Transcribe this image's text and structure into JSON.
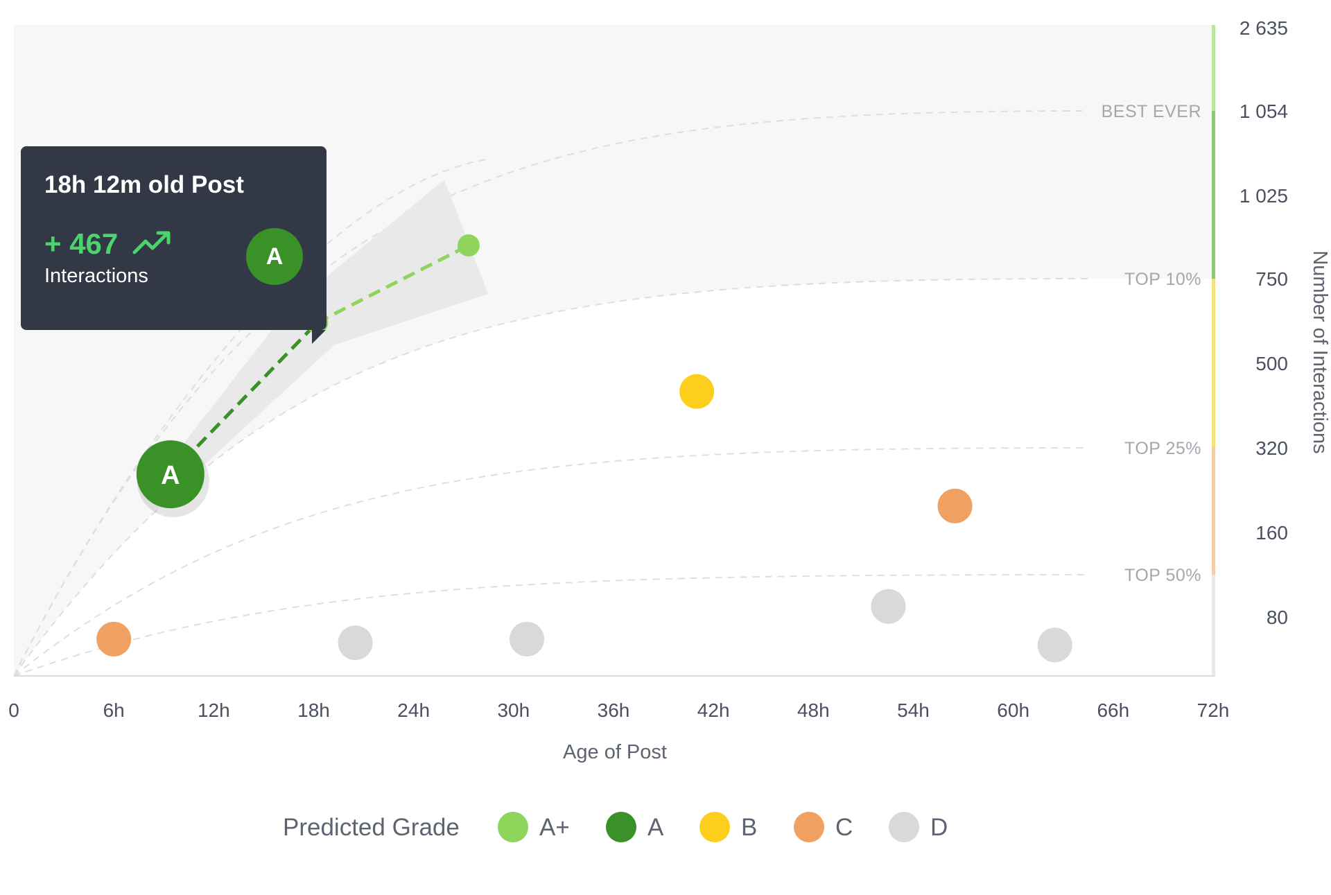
{
  "chart_data": {
    "type": "scatter",
    "xlabel": "Age of Post",
    "ylabel": "Number of Interactions",
    "x_ticks": [
      "0",
      "6h",
      "12h",
      "18h",
      "24h",
      "30h",
      "36h",
      "42h",
      "48h",
      "54h",
      "60h",
      "66h",
      "72h"
    ],
    "xlim": [
      0,
      72
    ],
    "y_ticks": [
      "80",
      "160",
      "320",
      "500",
      "750",
      "1 025",
      "1 054",
      "2 635"
    ],
    "bands": [
      {
        "label": "BEST EVER",
        "value": 1054,
        "color": "#b9e4a4"
      },
      {
        "label": "TOP 10%",
        "value": 750,
        "color": "#8dc87c"
      },
      {
        "label": "TOP 25%",
        "value": 320,
        "color": "#f4e27a"
      },
      {
        "label": "TOP 50%",
        "value": 120,
        "color": "#f3cba9"
      }
    ],
    "legend": {
      "title": "Predicted Grade",
      "items": [
        {
          "label": "A+",
          "color": "#8fd55c"
        },
        {
          "label": "A",
          "color": "#3a9127"
        },
        {
          "label": "B",
          "color": "#fdcf1c"
        },
        {
          "label": "C",
          "color": "#f0a060"
        },
        {
          "label": "D",
          "color": "#d9d9d9"
        }
      ]
    },
    "points": [
      {
        "x": 6,
        "y": 50,
        "grade": "C"
      },
      {
        "x": 20.5,
        "y": 45,
        "grade": "D"
      },
      {
        "x": 30.8,
        "y": 50,
        "grade": "D"
      },
      {
        "x": 41,
        "y": 440,
        "grade": "B"
      },
      {
        "x": 52.5,
        "y": 90,
        "grade": "D"
      },
      {
        "x": 56.5,
        "y": 210,
        "grade": "C"
      },
      {
        "x": 62.5,
        "y": 42,
        "grade": "D"
      }
    ],
    "highlight": {
      "x": 9.4,
      "y": 270,
      "grade": "A",
      "projection": [
        {
          "x": 18.2,
          "y": 620
        },
        {
          "x": 27.3,
          "y": 860
        }
      ]
    }
  },
  "tooltip": {
    "title": "18h 12m old Post",
    "value": "+ 467",
    "caption": "Interactions",
    "grade": "A"
  }
}
